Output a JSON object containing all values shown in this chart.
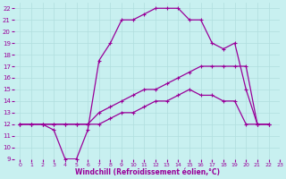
{
  "xlabel": "Windchill (Refroidissement éolien,°C)",
  "xlim": [
    -0.5,
    23
  ],
  "ylim": [
    9,
    22.5
  ],
  "yticks": [
    9,
    10,
    11,
    12,
    13,
    14,
    15,
    16,
    17,
    18,
    19,
    20,
    21,
    22
  ],
  "xticks": [
    0,
    1,
    2,
    3,
    4,
    5,
    6,
    7,
    8,
    9,
    10,
    11,
    12,
    13,
    14,
    15,
    16,
    17,
    18,
    19,
    20,
    21,
    22,
    23
  ],
  "bg_color": "#c8f0f0",
  "grid_color": "#b0dede",
  "line_color": "#990099",
  "line1_x": [
    0,
    1,
    2,
    3,
    4,
    5,
    6,
    7,
    8,
    9,
    10,
    11,
    12,
    13,
    14,
    15,
    16,
    17,
    18,
    19,
    20,
    21,
    22
  ],
  "line1_y": [
    12,
    12,
    12,
    11.5,
    9,
    9,
    11.5,
    17.5,
    19,
    21,
    21,
    21.5,
    22,
    22,
    22,
    21,
    21,
    19,
    18.5,
    19,
    15,
    12,
    12
  ],
  "line2_x": [
    0,
    1,
    2,
    3,
    4,
    5,
    6,
    7,
    8,
    9,
    10,
    11,
    12,
    13,
    14,
    15,
    16,
    17,
    18,
    19,
    20,
    21,
    22
  ],
  "line2_y": [
    12,
    12,
    12,
    12,
    12,
    12,
    12,
    13,
    13.5,
    14,
    14.5,
    15,
    15,
    15.5,
    16,
    16.5,
    17,
    17,
    17,
    17,
    17,
    12,
    12
  ],
  "line3_x": [
    0,
    1,
    2,
    3,
    4,
    5,
    6,
    7,
    8,
    9,
    10,
    11,
    12,
    13,
    14,
    15,
    16,
    17,
    18,
    19,
    20,
    21,
    22
  ],
  "line3_y": [
    12,
    12,
    12,
    12,
    12,
    12,
    12,
    12,
    12.5,
    13,
    13,
    13.5,
    14,
    14,
    14.5,
    15,
    14.5,
    14.5,
    14,
    14,
    12,
    12,
    12
  ]
}
